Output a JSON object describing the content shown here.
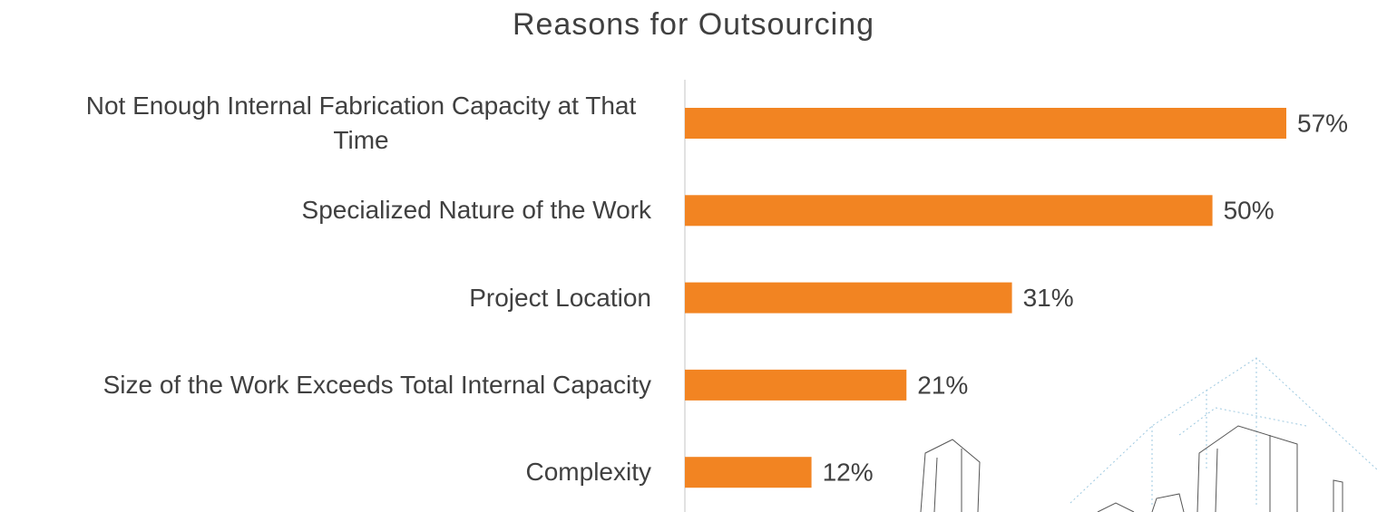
{
  "chart_data": {
    "type": "bar",
    "orientation": "horizontal",
    "title": "Reasons for Outsourcing",
    "categories": [
      "Not Enough Internal Fabrication Capacity at That Time",
      "Specialized Nature of the Work",
      "Project Location",
      "Size of the Work Exceeds Total Internal Capacity",
      "Complexity"
    ],
    "values": [
      57,
      50,
      31,
      21,
      12
    ],
    "value_labels": [
      "57%",
      "50%",
      "31%",
      "21%",
      "12%"
    ],
    "color": "#f28422"
  }
}
